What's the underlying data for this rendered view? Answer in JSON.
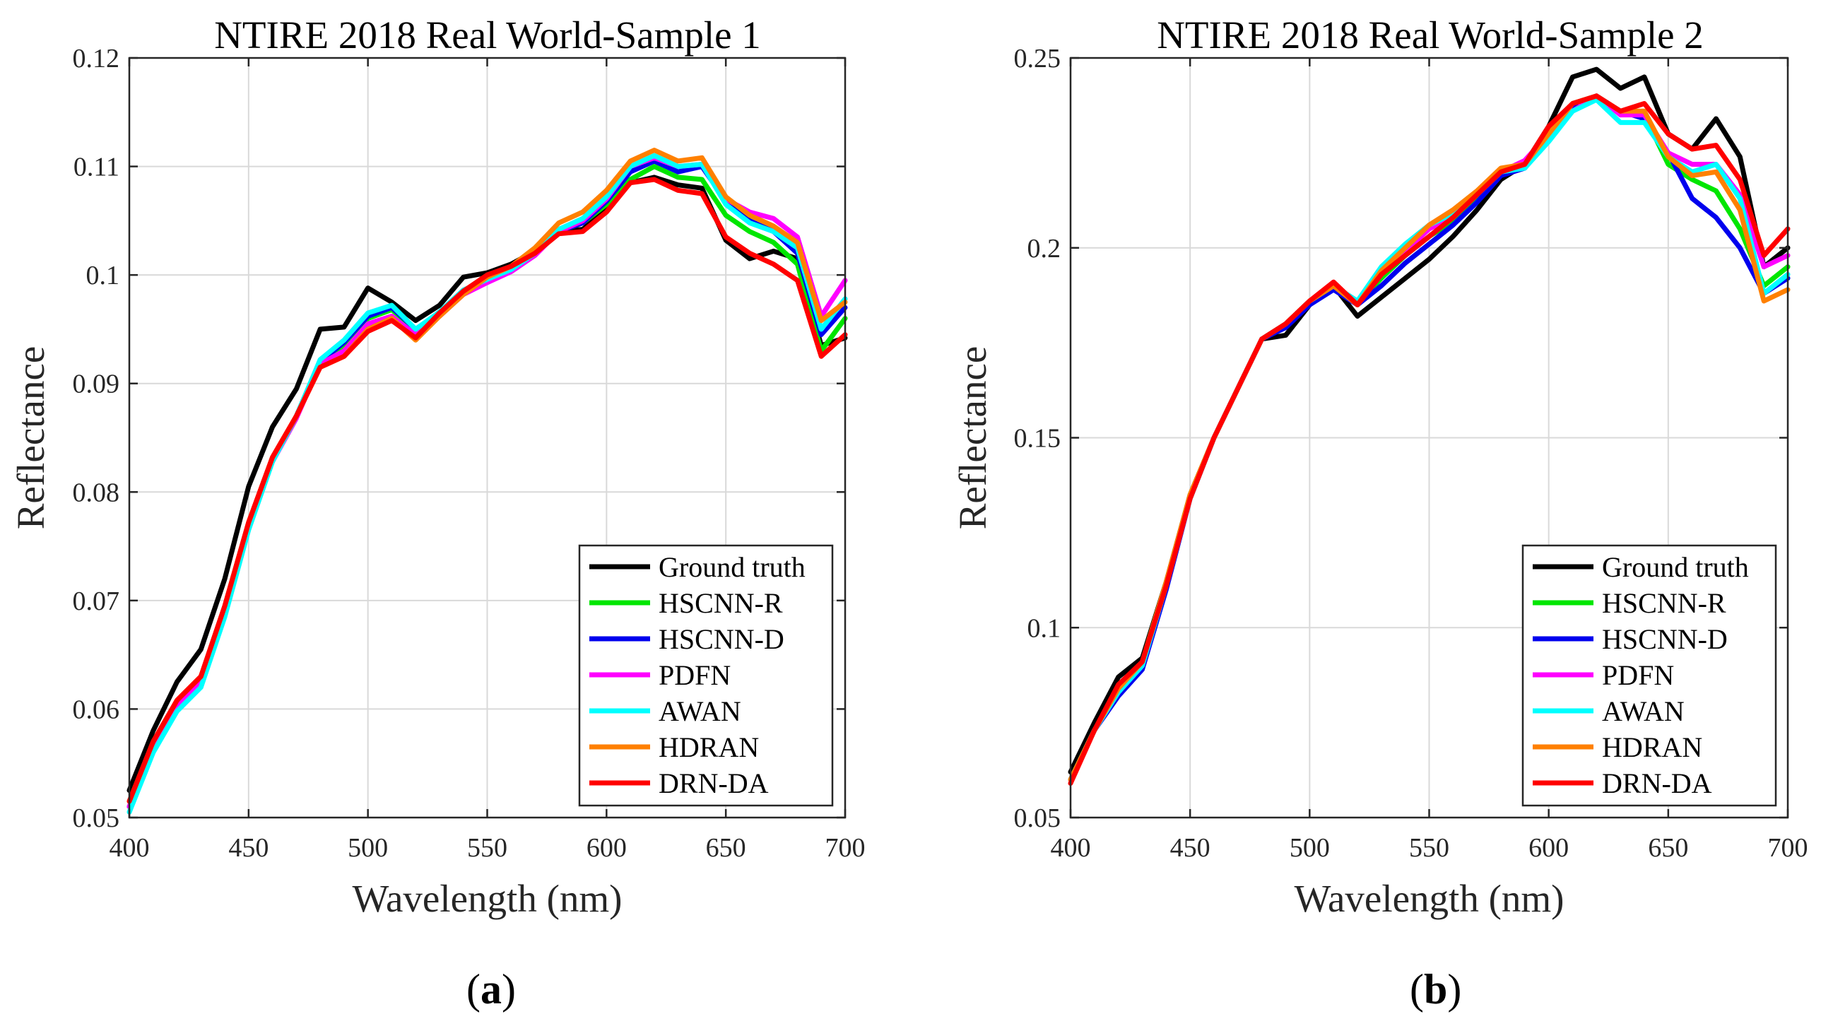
{
  "series_styles": [
    {
      "name": "Ground truth",
      "color": "#000000"
    },
    {
      "name": "HSCNN-R",
      "color": "#00e600"
    },
    {
      "name": "HSCNN-D",
      "color": "#0000ee"
    },
    {
      "name": "PDFN",
      "color": "#ff00ff"
    },
    {
      "name": "AWAN",
      "color": "#00ffff"
    },
    {
      "name": "HDRAN",
      "color": "#ff8000"
    },
    {
      "name": "DRN-DA",
      "color": "#ff0000"
    }
  ],
  "chart_data": [
    {
      "type": "line",
      "panel_label": {
        "open": "(",
        "letter": "a",
        "close": ")"
      },
      "title": "NTIRE 2018 Real World-Sample 1",
      "xlabel": "Wavelength (nm)",
      "ylabel": "Reflectance",
      "xlim": [
        400,
        700
      ],
      "ylim": [
        0.05,
        0.12
      ],
      "xticks": [
        400,
        450,
        500,
        550,
        600,
        650,
        700
      ],
      "xtick_labels": [
        "400",
        "450",
        "500",
        "550",
        "600",
        "650",
        "700"
      ],
      "yticks": [
        0.05,
        0.06,
        0.07,
        0.08,
        0.09,
        0.1,
        0.11,
        0.12
      ],
      "ytick_labels": [
        "0.05",
        "0.06",
        "0.07",
        "0.08",
        "0.09",
        "0.1",
        "0.11",
        "0.12"
      ],
      "grid": true,
      "legend": "bottom-right",
      "x": [
        400,
        410,
        420,
        430,
        440,
        450,
        460,
        470,
        480,
        490,
        500,
        510,
        520,
        530,
        540,
        550,
        560,
        570,
        580,
        590,
        600,
        610,
        620,
        630,
        640,
        650,
        660,
        670,
        680,
        690,
        700
      ],
      "series": [
        {
          "name": "Ground truth",
          "values": [
            0.0525,
            0.058,
            0.0625,
            0.0655,
            0.072,
            0.0805,
            0.086,
            0.0895,
            0.095,
            0.0952,
            0.0988,
            0.0975,
            0.0958,
            0.0972,
            0.0998,
            0.1002,
            0.101,
            0.1022,
            0.104,
            0.1042,
            0.106,
            0.1085,
            0.109,
            0.1083,
            0.108,
            0.1032,
            0.1015,
            0.1022,
            0.1015,
            0.0935,
            0.0942
          ]
        },
        {
          "name": "HSCNN-R",
          "values": [
            0.051,
            0.0565,
            0.0603,
            0.0625,
            0.069,
            0.077,
            0.083,
            0.087,
            0.092,
            0.0935,
            0.096,
            0.0968,
            0.095,
            0.0965,
            0.0985,
            0.0995,
            0.1005,
            0.102,
            0.104,
            0.1048,
            0.1065,
            0.1088,
            0.11,
            0.109,
            0.1088,
            0.1055,
            0.104,
            0.103,
            0.101,
            0.093,
            0.096
          ]
        },
        {
          "name": "HSCNN-D",
          "values": [
            0.051,
            0.0565,
            0.0603,
            0.0625,
            0.069,
            0.077,
            0.083,
            0.087,
            0.092,
            0.0938,
            0.0962,
            0.097,
            0.095,
            0.0965,
            0.0985,
            0.0995,
            0.1005,
            0.102,
            0.104,
            0.1048,
            0.1068,
            0.1095,
            0.1105,
            0.1095,
            0.11,
            0.1068,
            0.105,
            0.104,
            0.102,
            0.0945,
            0.097
          ]
        },
        {
          "name": "PDFN",
          "values": [
            0.051,
            0.0565,
            0.0603,
            0.0625,
            0.069,
            0.077,
            0.0828,
            0.0868,
            0.0918,
            0.093,
            0.0955,
            0.0962,
            0.0945,
            0.0962,
            0.0982,
            0.0993,
            0.1003,
            0.1018,
            0.104,
            0.105,
            0.107,
            0.11,
            0.1108,
            0.11,
            0.1102,
            0.107,
            0.1058,
            0.1052,
            0.1035,
            0.0962,
            0.0995
          ]
        },
        {
          "name": "AWAN",
          "values": [
            0.0505,
            0.056,
            0.0598,
            0.062,
            0.0685,
            0.0765,
            0.0828,
            0.087,
            0.0922,
            0.094,
            0.0965,
            0.0972,
            0.095,
            0.0966,
            0.0986,
            0.0996,
            0.1005,
            0.102,
            0.1042,
            0.1052,
            0.1072,
            0.11,
            0.111,
            0.11,
            0.1102,
            0.1065,
            0.1048,
            0.104,
            0.1025,
            0.095,
            0.0978
          ]
        },
        {
          "name": "HDRAN",
          "values": [
            0.0515,
            0.057,
            0.0608,
            0.063,
            0.0695,
            0.0772,
            0.0832,
            0.087,
            0.0915,
            0.0925,
            0.095,
            0.096,
            0.094,
            0.0962,
            0.0982,
            0.0998,
            0.1008,
            0.1025,
            0.1048,
            0.1058,
            0.1078,
            0.1105,
            0.1115,
            0.1105,
            0.1108,
            0.1072,
            0.1055,
            0.1045,
            0.103,
            0.0958,
            0.0975
          ]
        },
        {
          "name": "DRN-DA",
          "values": [
            0.0515,
            0.057,
            0.0608,
            0.063,
            0.0695,
            0.0772,
            0.0832,
            0.087,
            0.0915,
            0.0925,
            0.0948,
            0.0958,
            0.0942,
            0.0965,
            0.0985,
            0.1,
            0.1008,
            0.102,
            0.1038,
            0.104,
            0.1058,
            0.1085,
            0.1088,
            0.1078,
            0.1075,
            0.1035,
            0.102,
            0.101,
            0.0995,
            0.0925,
            0.0945
          ]
        }
      ]
    },
    {
      "type": "line",
      "panel_label": {
        "open": "(",
        "letter": "b",
        "close": ")"
      },
      "title": "NTIRE 2018 Real World-Sample 2",
      "xlabel": "Wavelength (nm)",
      "ylabel": "Reflectance",
      "xlim": [
        400,
        700
      ],
      "ylim": [
        0.05,
        0.25
      ],
      "xticks": [
        400,
        450,
        500,
        550,
        600,
        650,
        700
      ],
      "xtick_labels": [
        "400",
        "450",
        "500",
        "550",
        "600",
        "650",
        "700"
      ],
      "yticks": [
        0.05,
        0.1,
        0.15,
        0.2,
        0.25
      ],
      "ytick_labels": [
        "0.05",
        "0.1",
        "0.15",
        "0.2",
        "0.25"
      ],
      "grid": true,
      "legend": "bottom-right",
      "x": [
        400,
        410,
        420,
        430,
        440,
        450,
        460,
        470,
        480,
        490,
        500,
        510,
        520,
        530,
        540,
        550,
        560,
        570,
        580,
        590,
        600,
        610,
        620,
        630,
        640,
        650,
        660,
        670,
        680,
        690,
        700
      ],
      "series": [
        {
          "name": "Ground truth",
          "values": [
            0.062,
            0.075,
            0.087,
            0.092,
            0.112,
            0.135,
            0.15,
            0.163,
            0.176,
            0.177,
            0.185,
            0.19,
            0.182,
            0.187,
            0.192,
            0.197,
            0.203,
            0.21,
            0.218,
            0.222,
            0.232,
            0.245,
            0.247,
            0.242,
            0.245,
            0.23,
            0.226,
            0.234,
            0.224,
            0.195,
            0.2
          ]
        },
        {
          "name": "HSCNN-R",
          "values": [
            0.06,
            0.073,
            0.083,
            0.09,
            0.111,
            0.134,
            0.15,
            0.163,
            0.176,
            0.18,
            0.186,
            0.19,
            0.185,
            0.192,
            0.198,
            0.203,
            0.207,
            0.213,
            0.22,
            0.222,
            0.23,
            0.238,
            0.24,
            0.236,
            0.235,
            0.222,
            0.218,
            0.215,
            0.205,
            0.19,
            0.195
          ]
        },
        {
          "name": "HSCNN-D",
          "values": [
            0.06,
            0.073,
            0.082,
            0.089,
            0.11,
            0.134,
            0.15,
            0.163,
            0.176,
            0.179,
            0.185,
            0.189,
            0.185,
            0.19,
            0.196,
            0.201,
            0.206,
            0.212,
            0.219,
            0.221,
            0.229,
            0.237,
            0.24,
            0.236,
            0.234,
            0.225,
            0.213,
            0.208,
            0.2,
            0.188,
            0.192
          ]
        },
        {
          "name": "PDFN",
          "values": [
            0.06,
            0.073,
            0.083,
            0.09,
            0.111,
            0.134,
            0.15,
            0.163,
            0.176,
            0.18,
            0.186,
            0.19,
            0.185,
            0.193,
            0.199,
            0.205,
            0.208,
            0.214,
            0.22,
            0.223,
            0.23,
            0.236,
            0.24,
            0.235,
            0.235,
            0.225,
            0.222,
            0.222,
            0.214,
            0.195,
            0.198
          ]
        },
        {
          "name": "AWAN",
          "values": [
            0.06,
            0.073,
            0.083,
            0.09,
            0.111,
            0.134,
            0.15,
            0.163,
            0.176,
            0.18,
            0.186,
            0.19,
            0.186,
            0.195,
            0.201,
            0.206,
            0.209,
            0.214,
            0.22,
            0.221,
            0.228,
            0.236,
            0.239,
            0.233,
            0.233,
            0.224,
            0.22,
            0.222,
            0.213,
            0.188,
            0.193
          ]
        },
        {
          "name": "HDRAN",
          "values": [
            0.06,
            0.073,
            0.084,
            0.091,
            0.112,
            0.135,
            0.15,
            0.163,
            0.176,
            0.18,
            0.186,
            0.19,
            0.185,
            0.194,
            0.2,
            0.206,
            0.21,
            0.215,
            0.221,
            0.222,
            0.23,
            0.238,
            0.24,
            0.236,
            0.236,
            0.224,
            0.219,
            0.22,
            0.21,
            0.186,
            0.189
          ]
        },
        {
          "name": "DRN-DA",
          "values": [
            0.059,
            0.073,
            0.085,
            0.091,
            0.111,
            0.134,
            0.15,
            0.163,
            0.176,
            0.18,
            0.186,
            0.191,
            0.185,
            0.193,
            0.198,
            0.203,
            0.208,
            0.214,
            0.22,
            0.222,
            0.232,
            0.238,
            0.24,
            0.236,
            0.238,
            0.23,
            0.226,
            0.227,
            0.218,
            0.198,
            0.205
          ]
        }
      ]
    }
  ]
}
